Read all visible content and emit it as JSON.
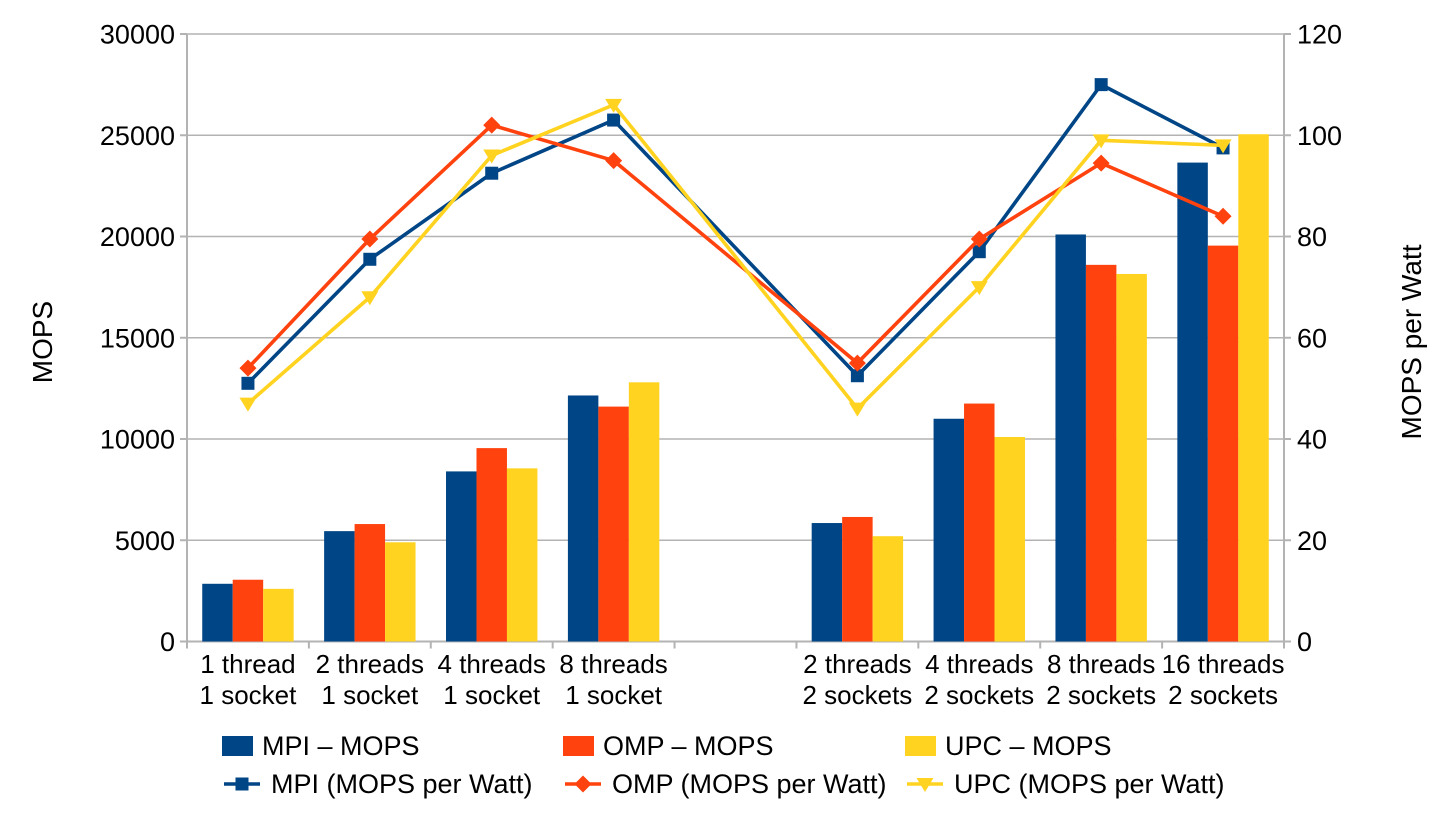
{
  "chart_data": {
    "type": "bar-line-combo",
    "num_slots": 9,
    "category_slots": [
      0,
      1,
      2,
      3,
      5,
      6,
      7,
      8
    ],
    "categories": [
      {
        "line1": "1 thread",
        "line2": "1 socket"
      },
      {
        "line1": "2 threads",
        "line2": "1 socket"
      },
      {
        "line1": "4 threads",
        "line2": "1 socket"
      },
      {
        "line1": "8 threads",
        "line2": "1 socket"
      },
      {
        "line1": "2 threads",
        "line2": "2 sockets"
      },
      {
        "line1": "4 threads",
        "line2": "2 sockets"
      },
      {
        "line1": "8 threads",
        "line2": "2 sockets"
      },
      {
        "line1": "16 threads",
        "line2": "2 sockets"
      }
    ],
    "bar_series": [
      {
        "name": "MPI – MOPS",
        "color": "#004586",
        "axis": "left",
        "values": [
          2850,
          5450,
          8400,
          12150,
          5850,
          11000,
          20100,
          23650
        ]
      },
      {
        "name": "OMP – MOPS",
        "color": "#FF420E",
        "axis": "left",
        "values": [
          3050,
          5800,
          9550,
          11600,
          6150,
          11750,
          18600,
          19550
        ]
      },
      {
        "name": "UPC – MOPS",
        "color": "#FFD320",
        "axis": "left",
        "values": [
          2600,
          4900,
          8550,
          12800,
          5200,
          10100,
          18150,
          25050
        ]
      }
    ],
    "line_series": [
      {
        "name": "MPI (MOPS per Watt)",
        "color": "#004586",
        "marker": "square",
        "axis": "right",
        "values": [
          51,
          75.5,
          92.5,
          103,
          52.5,
          77,
          110,
          97.5
        ]
      },
      {
        "name": "OMP (MOPS per Watt)",
        "color": "#FF420E",
        "marker": "diamond",
        "axis": "right",
        "values": [
          54,
          79.5,
          102,
          95,
          55,
          79.5,
          94.5,
          84
        ]
      },
      {
        "name": "UPC (MOPS per Watt)",
        "color": "#FFD320",
        "marker": "triangle-down",
        "axis": "right",
        "values": [
          47,
          68,
          96,
          106,
          46,
          70,
          99,
          98
        ]
      }
    ],
    "left_axis": {
      "title": "MOPS",
      "min": 0,
      "max": 30000,
      "ticks": [
        0,
        5000,
        10000,
        15000,
        20000,
        25000,
        30000
      ]
    },
    "right_axis": {
      "title": "MOPS per Watt",
      "min": 0,
      "max": 120,
      "ticks": [
        0,
        20,
        40,
        60,
        80,
        100,
        120
      ]
    },
    "grid": "horizontal",
    "legend_position": "bottom",
    "colors": {
      "grid": "#b3b3b3",
      "axis": "#b3b3b3",
      "text": "#000000"
    }
  }
}
